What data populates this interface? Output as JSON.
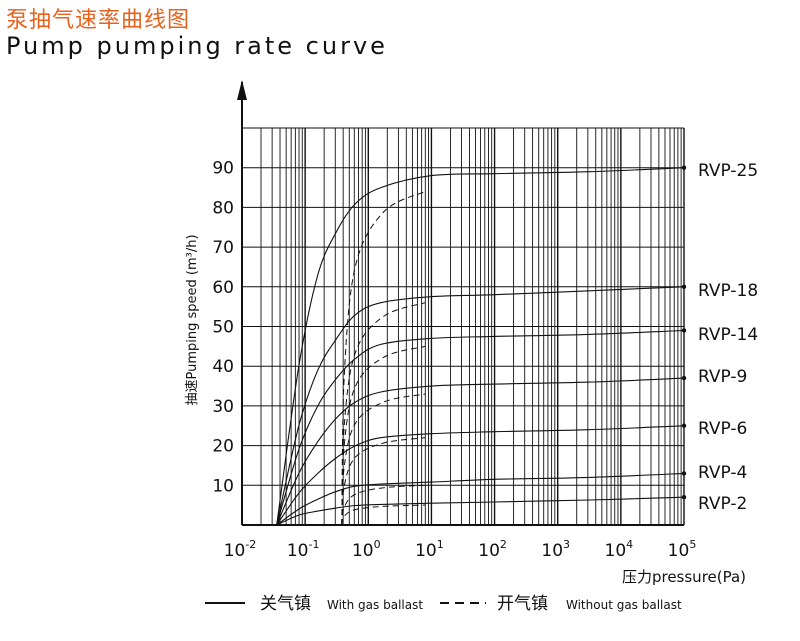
{
  "header": {
    "title_cn": "泵抽气速率曲线图",
    "title_en": "Pump pumping rate curve"
  },
  "chart_data": {
    "type": "line",
    "title": "Pump pumping rate curve",
    "xlabel": "压力pressure(Pa)",
    "ylabel": "抽速Pumping speed (m³/h)",
    "x_scale": "log",
    "xlim_exp": [
      -2,
      5
    ],
    "ylim": [
      0,
      100
    ],
    "x_tick_labels": [
      {
        "base": "10",
        "exp": "-2"
      },
      {
        "base": "10",
        "exp": "-1"
      },
      {
        "base": "10",
        "exp": "0"
      },
      {
        "base": "10",
        "exp": "1"
      },
      {
        "base": "10",
        "exp": "2"
      },
      {
        "base": "10",
        "exp": "3"
      },
      {
        "base": "10",
        "exp": "4"
      },
      {
        "base": "10",
        "exp": "5"
      }
    ],
    "y_ticks": [
      10,
      20,
      30,
      40,
      50,
      60,
      70,
      80,
      90
    ],
    "series": [
      {
        "name": "RVP-25",
        "values": [
          0,
          40,
          63,
          74,
          81,
          85,
          88,
          88.5,
          89,
          90
        ],
        "gas_ballast_knee": 84
      },
      {
        "name": "RVP-18",
        "values": [
          0,
          25,
          39,
          47,
          53,
          56,
          57.5,
          58,
          59,
          60
        ],
        "gas_ballast_knee": 56
      },
      {
        "name": "RVP-14",
        "values": [
          0,
          19,
          30,
          37,
          42,
          45.5,
          47,
          47.5,
          48,
          49
        ],
        "gas_ballast_knee": 45
      },
      {
        "name": "RVP-9",
        "values": [
          0,
          13,
          21,
          27,
          31,
          33.5,
          35,
          35.5,
          36,
          37
        ],
        "gas_ballast_knee": 33
      },
      {
        "name": "RVP-6",
        "values": [
          0,
          8,
          13,
          17,
          20,
          22,
          23,
          23.5,
          24,
          25
        ],
        "gas_ballast_knee": 22
      },
      {
        "name": "RVP-4",
        "values": [
          0,
          4,
          6.5,
          8.5,
          9.8,
          10.3,
          10.8,
          11.5,
          12,
          13
        ],
        "gas_ballast_knee": 10
      },
      {
        "name": "RVP-2",
        "values": [
          0,
          2.5,
          3.5,
          4.3,
          4.9,
          5.2,
          5.5,
          5.8,
          6.3,
          7
        ],
        "gas_ballast_knee": 5
      }
    ],
    "x_log_points": [
      -1.45,
      -1.1,
      -0.8,
      -0.5,
      -0.2,
      0.2,
      1.0,
      2.0,
      3.5,
      5.0
    ],
    "legend": [
      {
        "style": "solid",
        "label_cn": "关气镇",
        "label_en": "With gas ballast"
      },
      {
        "style": "dashed",
        "label_cn": "开气镇",
        "label_en": "Without gas ballast"
      }
    ]
  }
}
